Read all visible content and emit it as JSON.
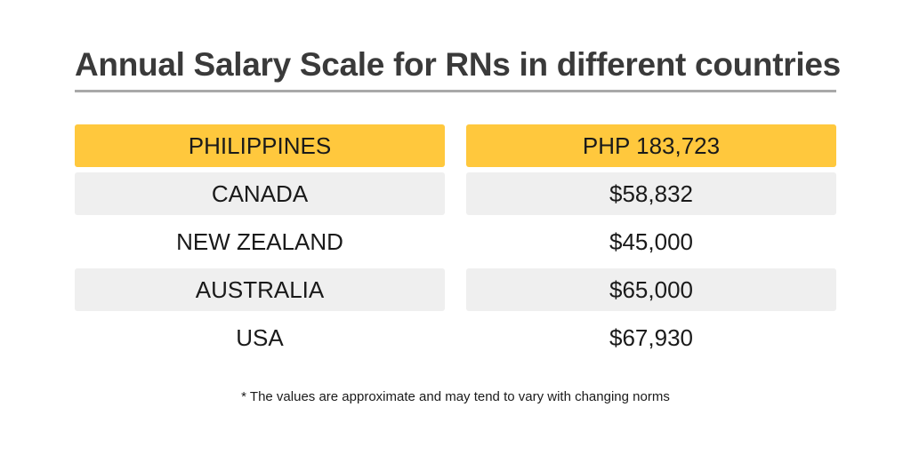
{
  "title": "Annual Salary Scale for RNs in different countries",
  "rows": [
    {
      "country": "PHILIPPINES",
      "salary": "PHP 183,723"
    },
    {
      "country": "CANADA",
      "salary": "$58,832"
    },
    {
      "country": "NEW ZEALAND",
      "salary": "$45,000"
    },
    {
      "country": "AUSTRALIA",
      "salary": "$65,000"
    },
    {
      "country": "USA",
      "salary": "$67,930"
    }
  ],
  "footnote": "* The values are approximate and may tend to vary with changing norms",
  "colors": {
    "header_fill": "#ffc83d",
    "stripe_fill": "#efefef",
    "title_text": "#3a3a3a",
    "rule": "#a9a9a9"
  }
}
